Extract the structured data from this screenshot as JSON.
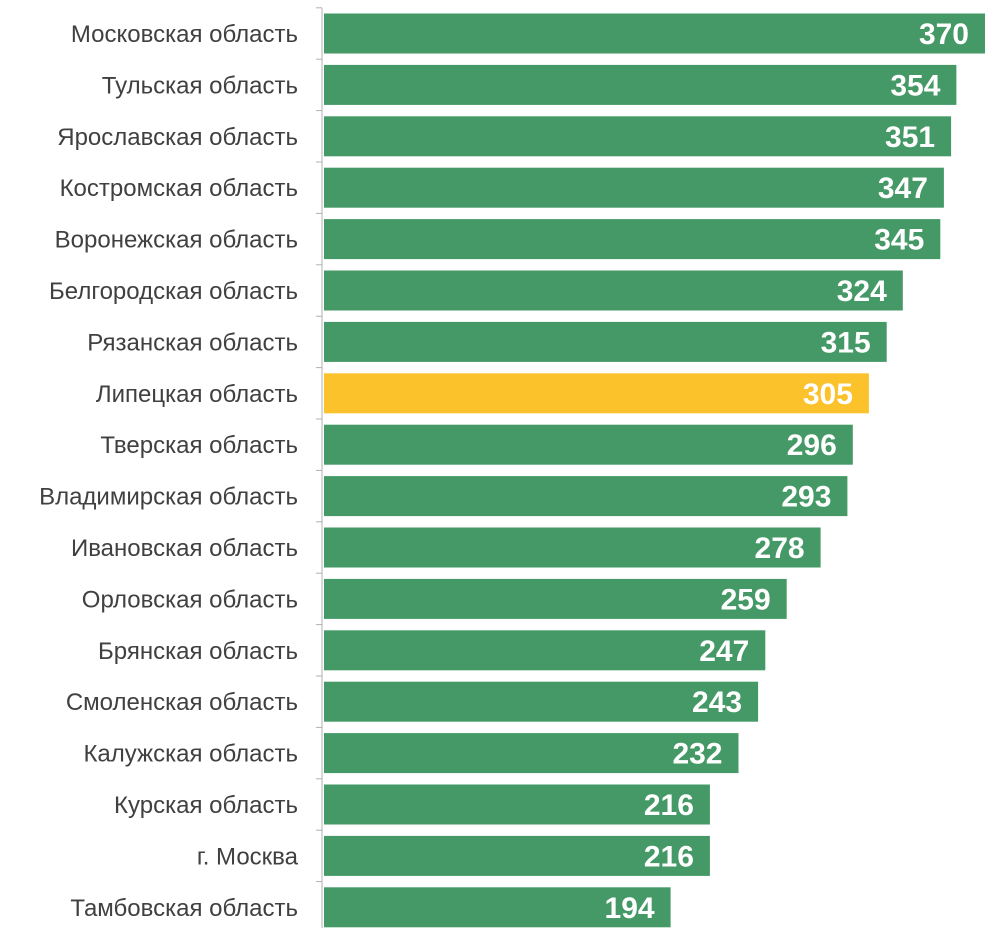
{
  "colors": {
    "bar_default": "#449966",
    "bar_highlight": "#FCC22B",
    "axis": "#b0b0b0",
    "category_text": "#404040",
    "value_text": "#ffffff"
  },
  "chart_data": {
    "type": "bar",
    "orientation": "horizontal",
    "title": "",
    "xlabel": "",
    "ylabel": "",
    "xlim": [
      0,
      370
    ],
    "grid": false,
    "legend": "none",
    "categories": [
      "Московская область",
      "Тульская область",
      "Ярославская область",
      "Костромская область",
      "Воронежская область",
      "Белгородская область",
      "Рязанская область",
      "Липецкая область",
      "Тверская область",
      "Владимирская область",
      "Ивановская область",
      "Орловская область",
      "Брянская область",
      "Смоленская область",
      "Калужская область",
      "Курская область",
      "г. Москва",
      "Тамбовская область"
    ],
    "values": [
      370,
      354,
      351,
      347,
      345,
      324,
      315,
      305,
      296,
      293,
      278,
      259,
      247,
      243,
      232,
      216,
      216,
      194
    ],
    "data_labels": [
      "370",
      "354",
      "351",
      "347",
      "345",
      "324",
      "315",
      "305",
      "296",
      "293",
      "278",
      "259",
      "247",
      "243",
      "232",
      "216",
      "216",
      "194"
    ],
    "highlighted_category": "Липецкая область"
  }
}
